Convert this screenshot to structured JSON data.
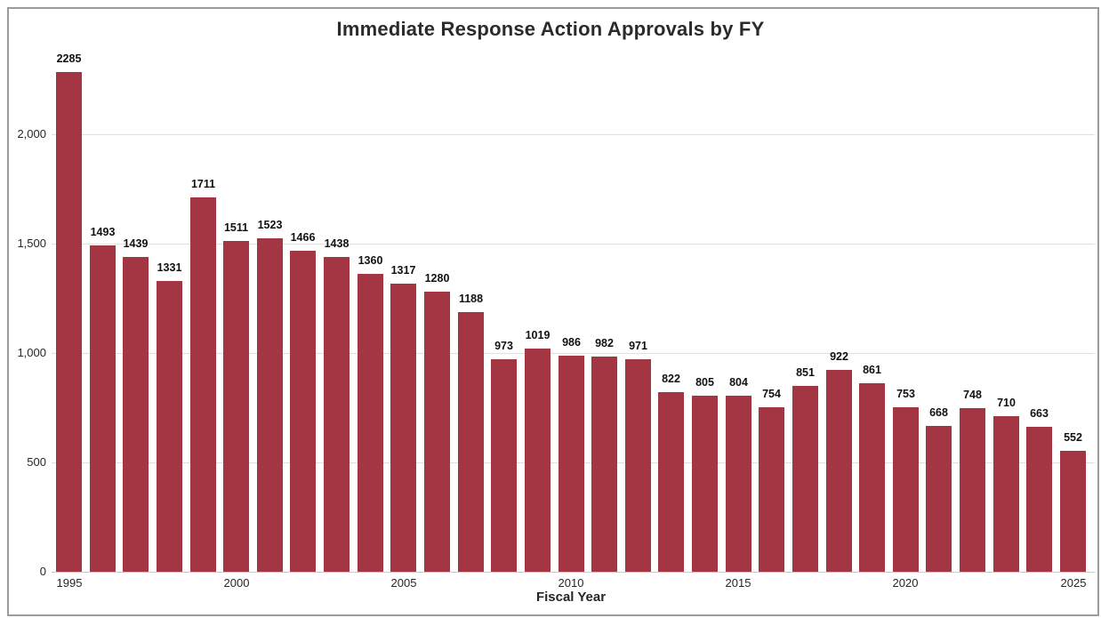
{
  "chart_data": {
    "type": "bar",
    "title": "Immediate Response Action Approvals by FY",
    "xlabel": "Fiscal Year",
    "ylabel": "",
    "categories": [
      "1995",
      "1996",
      "1997",
      "1998",
      "1999",
      "2000",
      "2001",
      "2002",
      "2003",
      "2004",
      "2005",
      "2006",
      "2007",
      "2008",
      "2009",
      "2010",
      "2011",
      "2012",
      "2013",
      "2014",
      "2015",
      "2016",
      "2017",
      "2018",
      "2019",
      "2020",
      "2021",
      "2022",
      "2023",
      "2024",
      "2025"
    ],
    "values": [
      2285,
      1493,
      1439,
      1331,
      1711,
      1511,
      1523,
      1466,
      1438,
      1360,
      1317,
      1280,
      1188,
      973,
      1019,
      986,
      982,
      971,
      822,
      805,
      804,
      754,
      851,
      922,
      861,
      753,
      668,
      748,
      710,
      663,
      552
    ],
    "value_labels_shown": true,
    "bar_color": "#A43542",
    "grid": "horizontal",
    "grid_color": "#E0E0E0",
    "axis_line_color": "#C9C9C9",
    "ylim": [
      0,
      2300
    ],
    "x_ticks": [
      {
        "index": 0,
        "label": "1995"
      },
      {
        "index": 5,
        "label": "2000"
      },
      {
        "index": 10,
        "label": "2005"
      },
      {
        "index": 15,
        "label": "2010"
      },
      {
        "index": 20,
        "label": "2015"
      },
      {
        "index": 25,
        "label": "2020"
      },
      {
        "index": 30,
        "label": "2025"
      }
    ],
    "y_ticks": [
      {
        "value": 0,
        "label": "0"
      },
      {
        "value": 500,
        "label": "500"
      },
      {
        "value": 1000,
        "label": "1,000"
      },
      {
        "value": 1500,
        "label": "1,500"
      },
      {
        "value": 2000,
        "label": "2,000"
      }
    ]
  }
}
